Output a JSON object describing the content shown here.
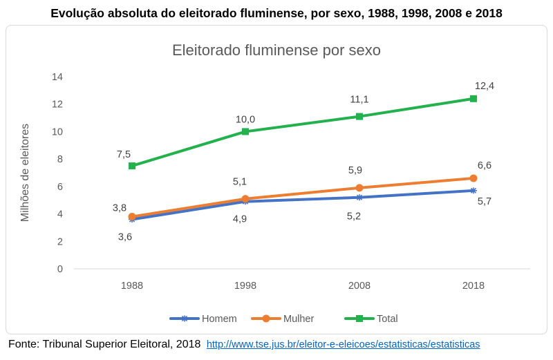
{
  "heading": "Evolução absoluta do eleitorado fluminense, por sexo, 1988, 1998, 2008 e 2018",
  "source": {
    "text": "Fonte: Tribunal Superior Eleitoral, 2018",
    "link": "http://www.tse.jus.br/eleitor-e-eleicoes/estatisticas/estatisticas"
  },
  "chart_data": {
    "type": "line",
    "title": "Eleitorado fluminense por sexo",
    "xlabel": "",
    "ylabel": "Milhões de eleitores",
    "categories": [
      "1988",
      "1998",
      "2008",
      "2018"
    ],
    "ylim": [
      0,
      14
    ],
    "yticks": [
      0,
      2,
      4,
      6,
      8,
      10,
      12,
      14
    ],
    "grid": false,
    "legend": "bottom",
    "series": [
      {
        "name": "Homem",
        "values": [
          3.6,
          4.9,
          5.2,
          5.7
        ],
        "labels": [
          "3,6",
          "4,9",
          "5,2",
          "5,7"
        ],
        "label_position": "below",
        "color": "#4472c4",
        "marker": "asterisk"
      },
      {
        "name": "Mulher",
        "values": [
          3.8,
          5.1,
          5.9,
          6.6
        ],
        "labels": [
          "3,8",
          "5,1",
          "5,9",
          "6,6"
        ],
        "label_position": "above",
        "color": "#ed7d31",
        "marker": "circle"
      },
      {
        "name": "Total",
        "values": [
          7.5,
          10.0,
          11.1,
          12.4
        ],
        "labels": [
          "7,5",
          "10,0",
          "11,1",
          "12,4"
        ],
        "label_position": "above",
        "color": "#22b14c",
        "marker": "square"
      }
    ]
  }
}
